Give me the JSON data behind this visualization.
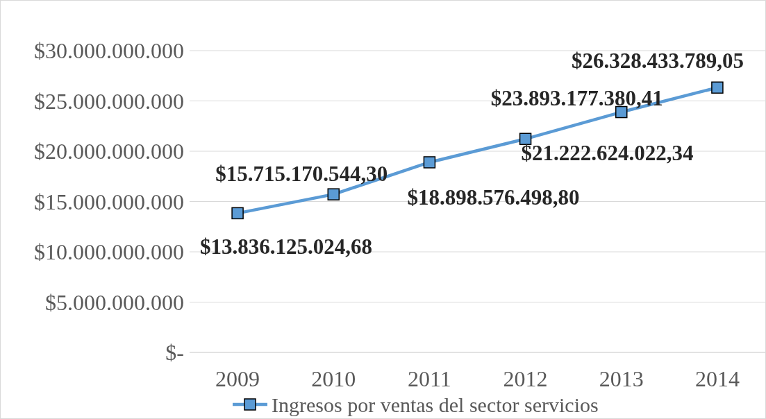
{
  "chart_data": {
    "type": "line",
    "categories": [
      "2009",
      "2010",
      "2011",
      "2012",
      "2013",
      "2014"
    ],
    "series": [
      {
        "name": "Ingresos por ventas del sector servicios",
        "color": "#5b9bd5",
        "values": [
          13836125024.68,
          15715170544.3,
          18898576498.8,
          21222624022.34,
          23893177380.41,
          26328433789.05
        ],
        "value_labels": [
          "$13.836.125.024,68",
          "$15.715.170.544,30",
          "$18.898.576.498,80",
          "$21.222.624.022,34",
          "$23.893.177.380,41",
          "$26.328.433.789,05"
        ]
      }
    ],
    "ylim": [
      0,
      30000000000
    ],
    "yticks": [
      {
        "value": 0,
        "label": "$-"
      },
      {
        "value": 5000000000,
        "label": "$5.000.000.000"
      },
      {
        "value": 10000000000,
        "label": "$10.000.000.000"
      },
      {
        "value": 15000000000,
        "label": "$15.000.000.000"
      },
      {
        "value": 20000000000,
        "label": "$20.000.000.000"
      },
      {
        "value": 25000000000,
        "label": "$25.000.000.000"
      },
      {
        "value": 30000000000,
        "label": "$30.000.000.000"
      }
    ],
    "grid": "y",
    "legend": "bottom",
    "marker": "square",
    "line_style": "solid"
  }
}
